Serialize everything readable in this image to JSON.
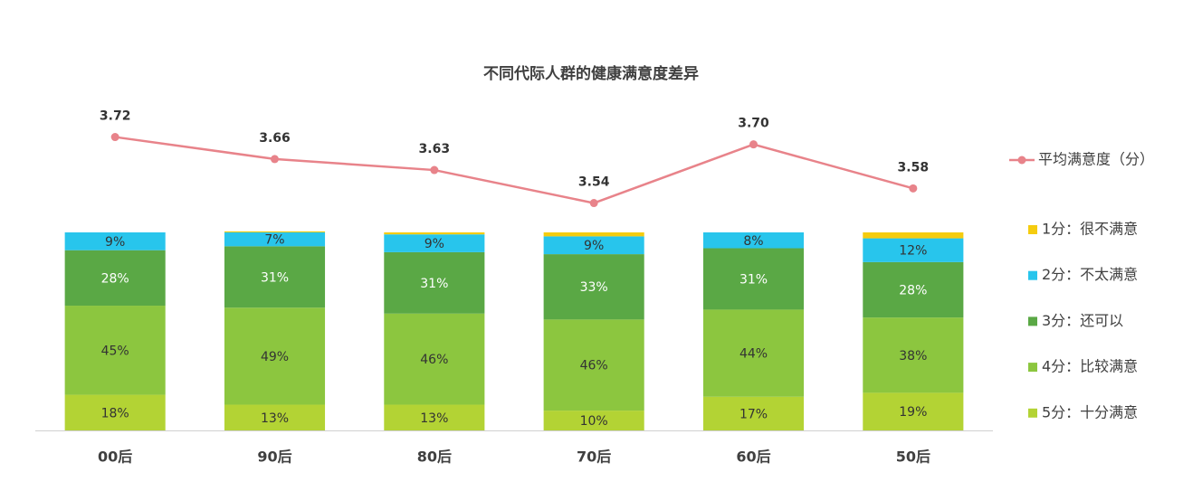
{
  "chart_data": {
    "type": "bar",
    "stacked": true,
    "title": "不同代际人群的健康满意度差异",
    "categories": [
      "00后",
      "90后",
      "80后",
      "70后",
      "60后",
      "50后"
    ],
    "ylim": [
      0,
      100
    ],
    "y2lim": [
      2.92,
      3.46
    ],
    "legend": "right",
    "series": [
      {
        "name": "5分：十分满意",
        "color": "#b3d334",
        "values": [
          18,
          13,
          13,
          10,
          17,
          19
        ],
        "value_labels": [
          "18%",
          "13%",
          "13%",
          "10%",
          "17%",
          "19%"
        ]
      },
      {
        "name": "4分：比较满意",
        "color": "#8cc63f",
        "values": [
          45,
          49,
          46,
          46,
          44,
          38
        ],
        "value_labels": [
          "45%",
          "49%",
          "46%",
          "46%",
          "44%",
          "38%"
        ]
      },
      {
        "name": "3分：还可以",
        "color": "#5aa845",
        "values": [
          28,
          31,
          31,
          33,
          31,
          28
        ],
        "value_labels": [
          "28%",
          "31%",
          "31%",
          "33%",
          "31%",
          "28%"
        ]
      },
      {
        "name": "2分：不太满意",
        "color": "#28c5ec",
        "values": [
          9,
          7,
          9,
          9,
          8,
          12
        ],
        "value_labels": [
          "9%",
          "7%",
          "9%",
          "9%",
          "8%",
          "12%"
        ]
      },
      {
        "name": "1分：很不满意",
        "color": "#f5cc0f",
        "values": [
          0,
          0.5,
          1,
          2,
          0,
          3
        ]
      },
      {
        "name": "平均满意度（分）",
        "type": "line",
        "axis": "y2",
        "color": "#e8838a",
        "values": [
          3.72,
          3.66,
          3.63,
          3.54,
          3.7,
          3.58
        ],
        "value_labels": [
          "3.72",
          "3.66",
          "3.63",
          "3.54",
          "3.70",
          "3.58"
        ]
      }
    ]
  }
}
